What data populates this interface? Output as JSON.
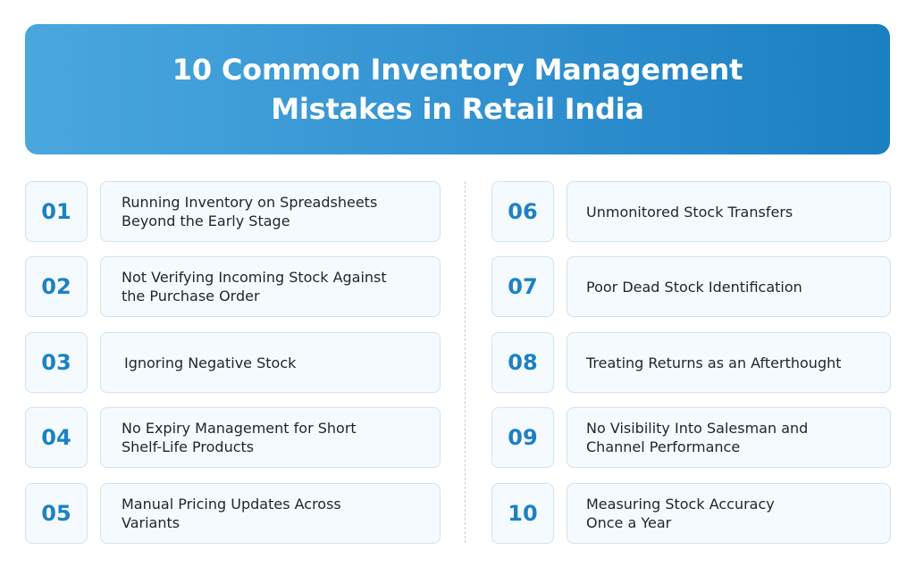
{
  "header": {
    "title_line1": "10 Common Inventory Management",
    "title_line2": "Mistakes in Retail India"
  },
  "items": [
    {
      "number": "01",
      "line1": "Running Inventory on Spreadsheets",
      "line2": "Beyond the Early Stage"
    },
    {
      "number": "02",
      "line1": "Not Verifying Incoming Stock Against",
      "line2": "the Purchase Order"
    },
    {
      "number": "03",
      "line1": "Ignoring Negative Stock",
      "line2": ""
    },
    {
      "number": "04",
      "line1": "No Expiry Management for Short",
      "line2": "Shelf-Life Products"
    },
    {
      "number": "05",
      "line1": "Manual Pricing Updates Across",
      "line2": "Variants"
    },
    {
      "number": "06",
      "line1": "Unmonitored Stock Transfers",
      "line2": ""
    },
    {
      "number": "07",
      "line1": "Poor Dead Stock Identification",
      "line2": ""
    },
    {
      "number": "08",
      "line1": "Treating Returns as an Afterthought",
      "line2": ""
    },
    {
      "number": "09",
      "line1": "No Visibility Into Salesman and",
      "line2": "Channel Performance"
    },
    {
      "number": "10",
      "line1": "Measuring Stock Accuracy",
      "line2": "Once a Year"
    }
  ]
}
